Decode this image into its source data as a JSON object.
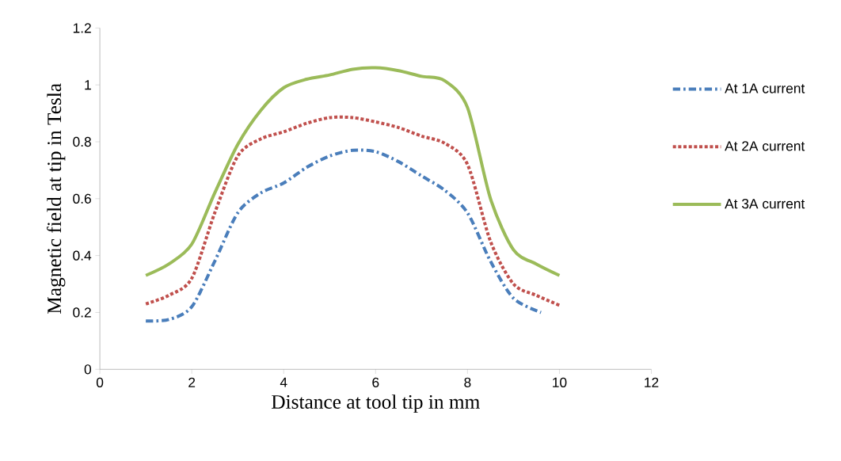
{
  "chart_data": {
    "type": "line",
    "xlabel": "Distance at tool tip in mm",
    "ylabel": "Magnetic field at tip in Tesla",
    "xlim": [
      0,
      12
    ],
    "xticks": [
      0,
      2,
      4,
      6,
      8,
      10,
      12
    ],
    "ylim": [
      0,
      1.2
    ],
    "yticks": [
      0,
      0.2,
      0.4,
      0.6,
      0.8,
      1,
      1.2
    ],
    "legend": "right",
    "series": [
      {
        "name": "At 1A current",
        "color": "#4a7ebb",
        "line_style": "dashdot",
        "x": [
          1,
          1.5,
          2,
          2.5,
          3,
          3.5,
          4,
          4.5,
          5,
          5.5,
          6,
          6.5,
          7,
          7.5,
          8,
          8.5,
          9,
          9.6
        ],
        "values": [
          0.17,
          0.175,
          0.22,
          0.38,
          0.55,
          0.62,
          0.655,
          0.71,
          0.75,
          0.77,
          0.765,
          0.73,
          0.68,
          0.63,
          0.55,
          0.38,
          0.25,
          0.2
        ]
      },
      {
        "name": "At 2A current",
        "color": "#c0504d",
        "line_style": "dotted",
        "x": [
          1,
          1.5,
          2,
          2.5,
          3,
          3.5,
          4,
          4.5,
          5,
          5.5,
          6,
          6.5,
          7,
          7.5,
          8,
          8.5,
          9,
          9.5,
          10
        ],
        "values": [
          0.23,
          0.26,
          0.32,
          0.55,
          0.75,
          0.81,
          0.835,
          0.865,
          0.885,
          0.885,
          0.87,
          0.85,
          0.82,
          0.795,
          0.72,
          0.45,
          0.3,
          0.26,
          0.225
        ]
      },
      {
        "name": "At 3A current",
        "color": "#9bbb59",
        "line_style": "solid",
        "x": [
          1,
          1.5,
          2,
          2.5,
          3,
          3.5,
          4,
          4.5,
          5,
          5.5,
          6,
          6.5,
          7,
          7.5,
          8,
          8.5,
          9,
          9.5,
          10
        ],
        "values": [
          0.33,
          0.37,
          0.44,
          0.62,
          0.79,
          0.91,
          0.99,
          1.02,
          1.035,
          1.055,
          1.06,
          1.05,
          1.03,
          1.015,
          0.92,
          0.6,
          0.42,
          0.37,
          0.33
        ]
      }
    ]
  }
}
